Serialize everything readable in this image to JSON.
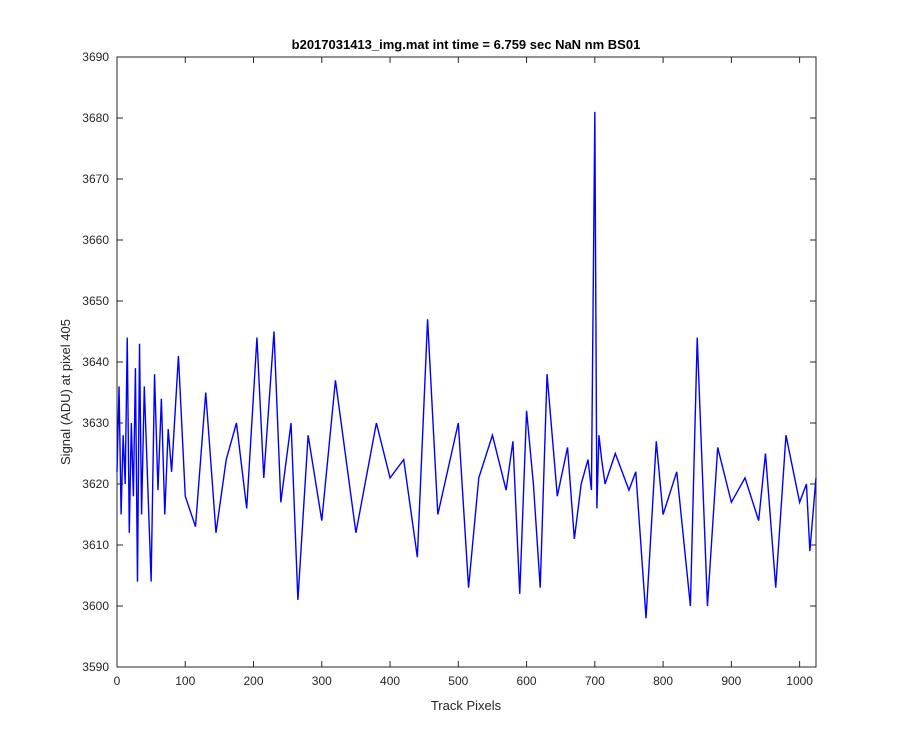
{
  "chart_data": {
    "type": "line",
    "title": "b2017031413_img.mat int time = 6.759 sec  NaN nm BS01",
    "xlabel": "Track Pixels",
    "ylabel": "Signal (ADU) at pixel 405",
    "xlim": [
      0,
      1024
    ],
    "ylim": [
      3590,
      3690
    ],
    "xticks": [
      0,
      100,
      200,
      300,
      400,
      500,
      600,
      700,
      800,
      900,
      1000
    ],
    "yticks": [
      3590,
      3600,
      3610,
      3620,
      3630,
      3640,
      3650,
      3660,
      3670,
      3680,
      3690
    ],
    "grid": false,
    "legend": "none",
    "line_color": "#0000ff",
    "series": [
      {
        "points_x": [
          0,
          3,
          6,
          9,
          12,
          15,
          18,
          21,
          24,
          27,
          30,
          33,
          36,
          40,
          45,
          50,
          55,
          60,
          65,
          70,
          75,
          80,
          90,
          100,
          115,
          130,
          145,
          160,
          175,
          190,
          205,
          215,
          230,
          240,
          255,
          265,
          280,
          300,
          320,
          350,
          380,
          400,
          420,
          440,
          455,
          470,
          500,
          515,
          530,
          550,
          570,
          580,
          590,
          600,
          610,
          620,
          630,
          645,
          660,
          670,
          680,
          690,
          695,
          700,
          703,
          706,
          710,
          715,
          730,
          750,
          760,
          775,
          790,
          800,
          820,
          840,
          850,
          865,
          880,
          900,
          920,
          940,
          950,
          965,
          980,
          1000,
          1010,
          1015,
          1024
        ],
        "points_y": [
          3622,
          3636,
          3615,
          3628,
          3620,
          3644,
          3612,
          3630,
          3618,
          3639,
          3604,
          3643,
          3615,
          3636,
          3620,
          3604,
          3638,
          3619,
          3634,
          3615,
          3629,
          3622,
          3641,
          3618,
          3613,
          3635,
          3612,
          3624,
          3630,
          3616,
          3644,
          3621,
          3645,
          3617,
          3630,
          3601,
          3628,
          3614,
          3637,
          3612,
          3630,
          3621,
          3624,
          3608,
          3647,
          3615,
          3630,
          3603,
          3621,
          3628,
          3619,
          3627,
          3602,
          3632,
          3620,
          3603,
          3638,
          3618,
          3626,
          3611,
          3620,
          3624,
          3619,
          3681,
          3616,
          3628,
          3624,
          3620,
          3625,
          3619,
          3622,
          3598,
          3627,
          3615,
          3622,
          3600,
          3644,
          3600,
          3626,
          3617,
          3621,
          3614,
          3625,
          3603,
          3628,
          3617,
          3620,
          3609,
          3621
        ]
      }
    ]
  }
}
